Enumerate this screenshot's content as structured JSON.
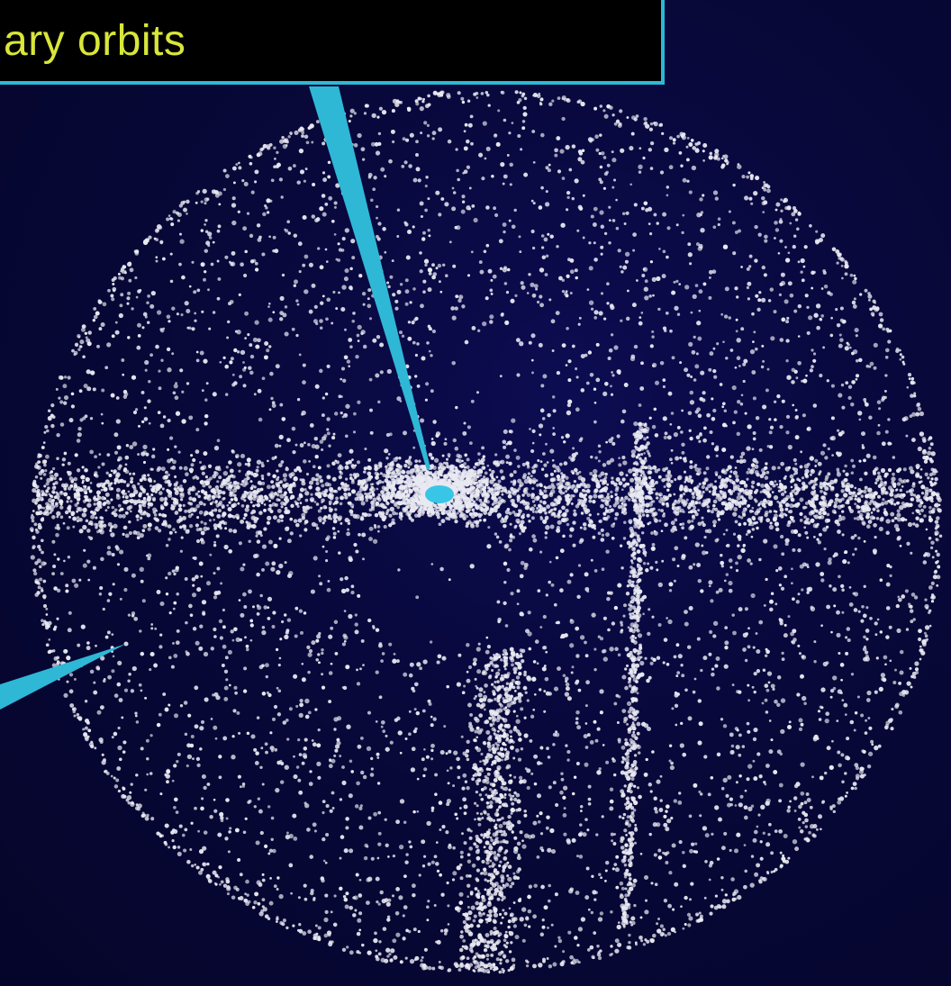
{
  "label": {
    "text": "ary orbits",
    "text_color": "#d8e63a",
    "border_color": "#2fb7d6",
    "background": "#000000"
  },
  "pointers": {
    "color": "#2fb7d6",
    "count": 2
  },
  "colors": {
    "background": "#0b0b3a",
    "particles": "#e9e9f2",
    "sun_marker": "#39c6e6"
  }
}
